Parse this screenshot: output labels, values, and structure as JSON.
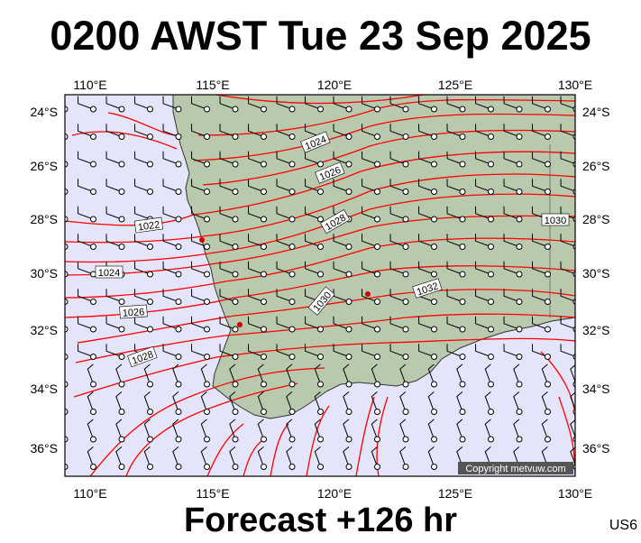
{
  "header": {
    "title": "0200 AWST Tue 23 Sep 2025"
  },
  "footer": {
    "forecast": "Forecast +126 hr",
    "region_code": "US6"
  },
  "map": {
    "copyright": "Copyright metvuw.com",
    "lon_labels": [
      "110°E",
      "115°E",
      "120°E",
      "125°E",
      "130°E"
    ],
    "lat_labels": [
      "24°S",
      "26°S",
      "28°S",
      "30°S",
      "32°S",
      "34°S",
      "36°S"
    ],
    "isobar_labels": [
      "1024",
      "1026",
      "1022",
      "1028",
      "1030",
      "1024",
      "1026",
      "1030",
      "1032",
      "1028"
    ],
    "colors": {
      "ocean": "#e4e4fa",
      "land": "#b9c9ad",
      "isobar": "#ff0000",
      "high_marker": "#cc0000"
    }
  }
}
